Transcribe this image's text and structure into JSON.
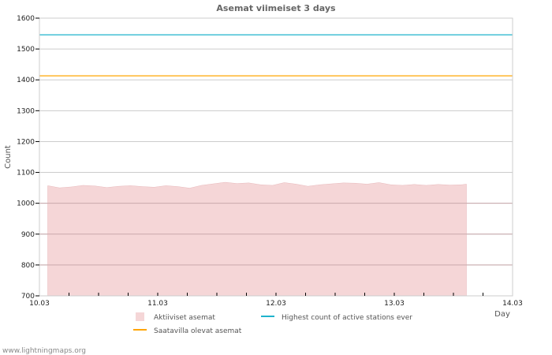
{
  "chart_data": {
    "type": "area",
    "title": "Asemat viimeiset 3 days",
    "xlabel": "Day",
    "ylabel": "Count",
    "ylim": [
      700,
      1600
    ],
    "yticks": [
      "700",
      "800",
      "900",
      "1000",
      "1100",
      "1200",
      "1300",
      "1400",
      "1500",
      "1600"
    ],
    "xlim_days": [
      0,
      4
    ],
    "xticks": [
      "10.03",
      "11.03",
      "12.03",
      "13.03",
      "14.03"
    ],
    "grid": true,
    "legend_position": "bottom",
    "series": [
      {
        "name": "Aktiiviset asemat",
        "type": "area",
        "color": "#f5d6d7",
        "x_days": [
          0.07,
          0.17,
          0.27,
          0.37,
          0.47,
          0.57,
          0.67,
          0.77,
          0.87,
          0.97,
          1.07,
          1.17,
          1.27,
          1.37,
          1.47,
          1.57,
          1.67,
          1.77,
          1.87,
          1.97,
          2.07,
          2.17,
          2.27,
          2.37,
          2.47,
          2.57,
          2.67,
          2.77,
          2.87,
          2.97,
          3.07,
          3.17,
          3.27,
          3.37,
          3.47,
          3.57,
          3.61
        ],
        "values": [
          1057,
          1050,
          1053,
          1058,
          1056,
          1051,
          1055,
          1057,
          1054,
          1052,
          1057,
          1054,
          1049,
          1058,
          1063,
          1068,
          1064,
          1066,
          1060,
          1058,
          1067,
          1062,
          1055,
          1060,
          1063,
          1066,
          1065,
          1062,
          1067,
          1060,
          1058,
          1061,
          1058,
          1061,
          1059,
          1060,
          1062
        ]
      },
      {
        "name": "Highest count of active stations ever",
        "type": "hline",
        "color": "#1fb3cc",
        "values": [
          1546
        ]
      },
      {
        "name": "Saatavilla olevat asemat",
        "type": "hline",
        "color": "#ffa500",
        "values": [
          1413
        ]
      }
    ]
  },
  "watermark": "www.lightningmaps.org"
}
